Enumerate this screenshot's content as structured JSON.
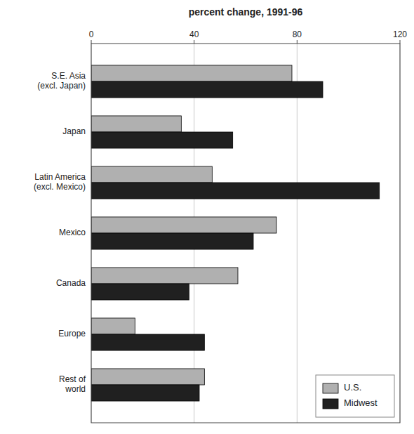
{
  "chart_data": {
    "type": "bar",
    "orientation": "horizontal",
    "title": "percent change, 1991-96",
    "categories": [
      "S.E. Asia\n(excl. Japan)",
      "Japan",
      "Latin America\n(excl. Mexico)",
      "Mexico",
      "Canada",
      "Europe",
      "Rest of\nworld"
    ],
    "series": [
      {
        "name": "U.S.",
        "color": "#b0b0b0",
        "values": [
          78,
          35,
          47,
          72,
          57,
          17,
          44
        ]
      },
      {
        "name": "Midwest",
        "color": "#202020",
        "values": [
          90,
          55,
          112,
          63,
          38,
          44,
          42
        ]
      }
    ],
    "xlim": [
      0,
      120
    ],
    "xticks": [
      0,
      40,
      80,
      120
    ],
    "grid": true,
    "legend": "lower right"
  }
}
